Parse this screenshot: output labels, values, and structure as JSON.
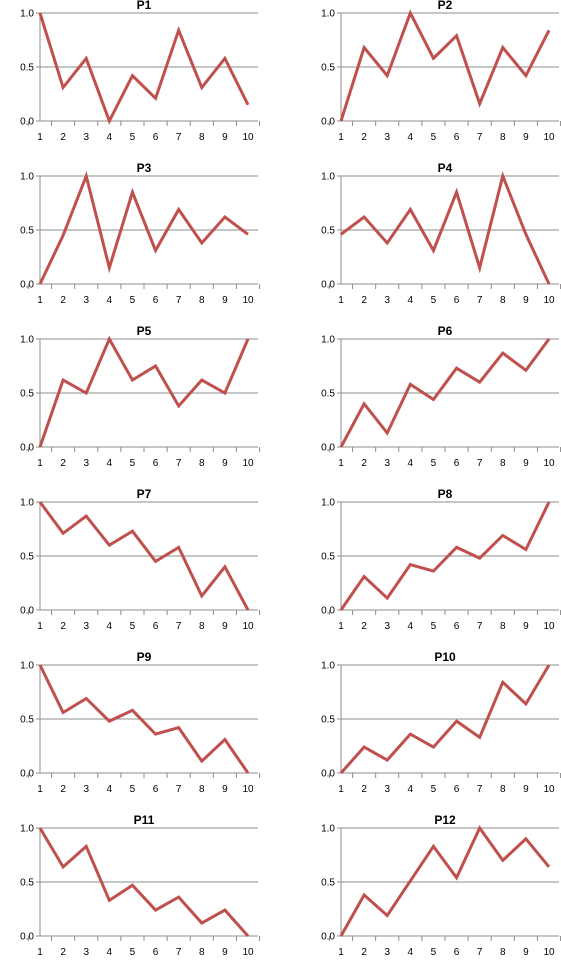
{
  "colors": {
    "series": "#C0504D"
  },
  "chart_data": [
    {
      "type": "line",
      "title": "P1",
      "x": [
        1,
        2,
        3,
        4,
        5,
        6,
        7,
        8,
        9,
        10
      ],
      "ylim": [
        0,
        1.0
      ],
      "yticks": [
        "0.0",
        "0.5",
        "1.0"
      ],
      "grid": true,
      "legend": "none",
      "series": [
        {
          "values": [
            1.0,
            0.31,
            0.58,
            0.0,
            0.42,
            0.21,
            0.84,
            0.31,
            0.58,
            0.15
          ]
        }
      ]
    },
    {
      "type": "line",
      "title": "P2",
      "x": [
        1,
        2,
        3,
        4,
        5,
        6,
        7,
        8,
        9,
        10
      ],
      "ylim": [
        0,
        1.0
      ],
      "yticks": [
        "0.0",
        "0.5",
        "1.0"
      ],
      "grid": true,
      "legend": "none",
      "series": [
        {
          "values": [
            0.0,
            0.68,
            0.42,
            1.0,
            0.58,
            0.79,
            0.16,
            0.68,
            0.42,
            0.84
          ]
        }
      ]
    },
    {
      "type": "line",
      "title": "P3",
      "x": [
        1,
        2,
        3,
        4,
        5,
        6,
        7,
        8,
        9,
        10
      ],
      "ylim": [
        0,
        1.0
      ],
      "yticks": [
        "0.0",
        "0.5",
        "1.0"
      ],
      "grid": true,
      "legend": "none",
      "series": [
        {
          "values": [
            0.0,
            0.45,
            1.0,
            0.15,
            0.85,
            0.31,
            0.69,
            0.38,
            0.62,
            0.46
          ]
        }
      ]
    },
    {
      "type": "line",
      "title": "P4",
      "x": [
        1,
        2,
        3,
        4,
        5,
        6,
        7,
        8,
        9,
        10
      ],
      "ylim": [
        0,
        1.0
      ],
      "yticks": [
        "0.0",
        "0.5",
        "1.0"
      ],
      "grid": true,
      "legend": "none",
      "series": [
        {
          "values": [
            0.46,
            0.62,
            0.38,
            0.69,
            0.31,
            0.85,
            0.15,
            1.0,
            0.46,
            0.0
          ]
        }
      ]
    },
    {
      "type": "line",
      "title": "P5",
      "x": [
        1,
        2,
        3,
        4,
        5,
        6,
        7,
        8,
        9,
        10
      ],
      "ylim": [
        0,
        1.0
      ],
      "yticks": [
        "0.0",
        "0.5",
        "1.0"
      ],
      "grid": true,
      "legend": "none",
      "series": [
        {
          "values": [
            0.0,
            0.62,
            0.5,
            1.0,
            0.62,
            0.75,
            0.38,
            0.62,
            0.5,
            1.0
          ]
        }
      ]
    },
    {
      "type": "line",
      "title": "P6",
      "x": [
        1,
        2,
        3,
        4,
        5,
        6,
        7,
        8,
        9,
        10
      ],
      "ylim": [
        0,
        1.0
      ],
      "yticks": [
        "0.0",
        "0.5",
        "1.0"
      ],
      "grid": true,
      "legend": "none",
      "series": [
        {
          "values": [
            0.0,
            0.4,
            0.13,
            0.58,
            0.44,
            0.73,
            0.6,
            0.87,
            0.71,
            1.0
          ]
        }
      ]
    },
    {
      "type": "line",
      "title": "P7",
      "x": [
        1,
        2,
        3,
        4,
        5,
        6,
        7,
        8,
        9,
        10
      ],
      "ylim": [
        0,
        1.0
      ],
      "yticks": [
        "0.0",
        "0.5",
        "1.0"
      ],
      "grid": true,
      "legend": "none",
      "series": [
        {
          "values": [
            1.0,
            0.71,
            0.87,
            0.6,
            0.73,
            0.45,
            0.58,
            0.13,
            0.4,
            0.0
          ]
        }
      ]
    },
    {
      "type": "line",
      "title": "P8",
      "x": [
        1,
        2,
        3,
        4,
        5,
        6,
        7,
        8,
        9,
        10
      ],
      "ylim": [
        0,
        1.0
      ],
      "yticks": [
        "0.0",
        "0.5",
        "1.0"
      ],
      "grid": true,
      "legend": "none",
      "series": [
        {
          "values": [
            0.0,
            0.31,
            0.11,
            0.42,
            0.36,
            0.58,
            0.48,
            0.69,
            0.56,
            1.0
          ]
        }
      ]
    },
    {
      "type": "line",
      "title": "P9",
      "x": [
        1,
        2,
        3,
        4,
        5,
        6,
        7,
        8,
        9,
        10
      ],
      "ylim": [
        0,
        1.0
      ],
      "yticks": [
        "0.0",
        "0.5",
        "1.0"
      ],
      "grid": true,
      "legend": "none",
      "series": [
        {
          "values": [
            1.0,
            0.56,
            0.69,
            0.48,
            0.58,
            0.36,
            0.42,
            0.11,
            0.31,
            0.0
          ]
        }
      ]
    },
    {
      "type": "line",
      "title": "P10",
      "x": [
        1,
        2,
        3,
        4,
        5,
        6,
        7,
        8,
        9,
        10
      ],
      "ylim": [
        0,
        1.0
      ],
      "yticks": [
        "0.0",
        "0.5",
        "1.0"
      ],
      "grid": true,
      "legend": "none",
      "series": [
        {
          "values": [
            0.0,
            0.24,
            0.12,
            0.36,
            0.24,
            0.48,
            0.33,
            0.84,
            0.64,
            1.0
          ]
        }
      ]
    },
    {
      "type": "line",
      "title": "P11",
      "x": [
        1,
        2,
        3,
        4,
        5,
        6,
        7,
        8,
        9,
        10
      ],
      "ylim": [
        0,
        1.0
      ],
      "yticks": [
        "0.0",
        "0.5",
        "1.0"
      ],
      "grid": true,
      "legend": "none",
      "series": [
        {
          "values": [
            1.0,
            0.64,
            0.83,
            0.33,
            0.47,
            0.24,
            0.36,
            0.12,
            0.24,
            0.0
          ]
        }
      ]
    },
    {
      "type": "line",
      "title": "P12",
      "x": [
        1,
        2,
        3,
        4,
        5,
        6,
        7,
        8,
        9,
        10
      ],
      "ylim": [
        0,
        1.0
      ],
      "yticks": [
        "0.0",
        "0.5",
        "1.0"
      ],
      "grid": true,
      "legend": "none",
      "series": [
        {
          "values": [
            0.0,
            0.38,
            0.19,
            0.51,
            0.83,
            0.54,
            1.0,
            0.7,
            0.9,
            0.64
          ]
        }
      ]
    }
  ]
}
